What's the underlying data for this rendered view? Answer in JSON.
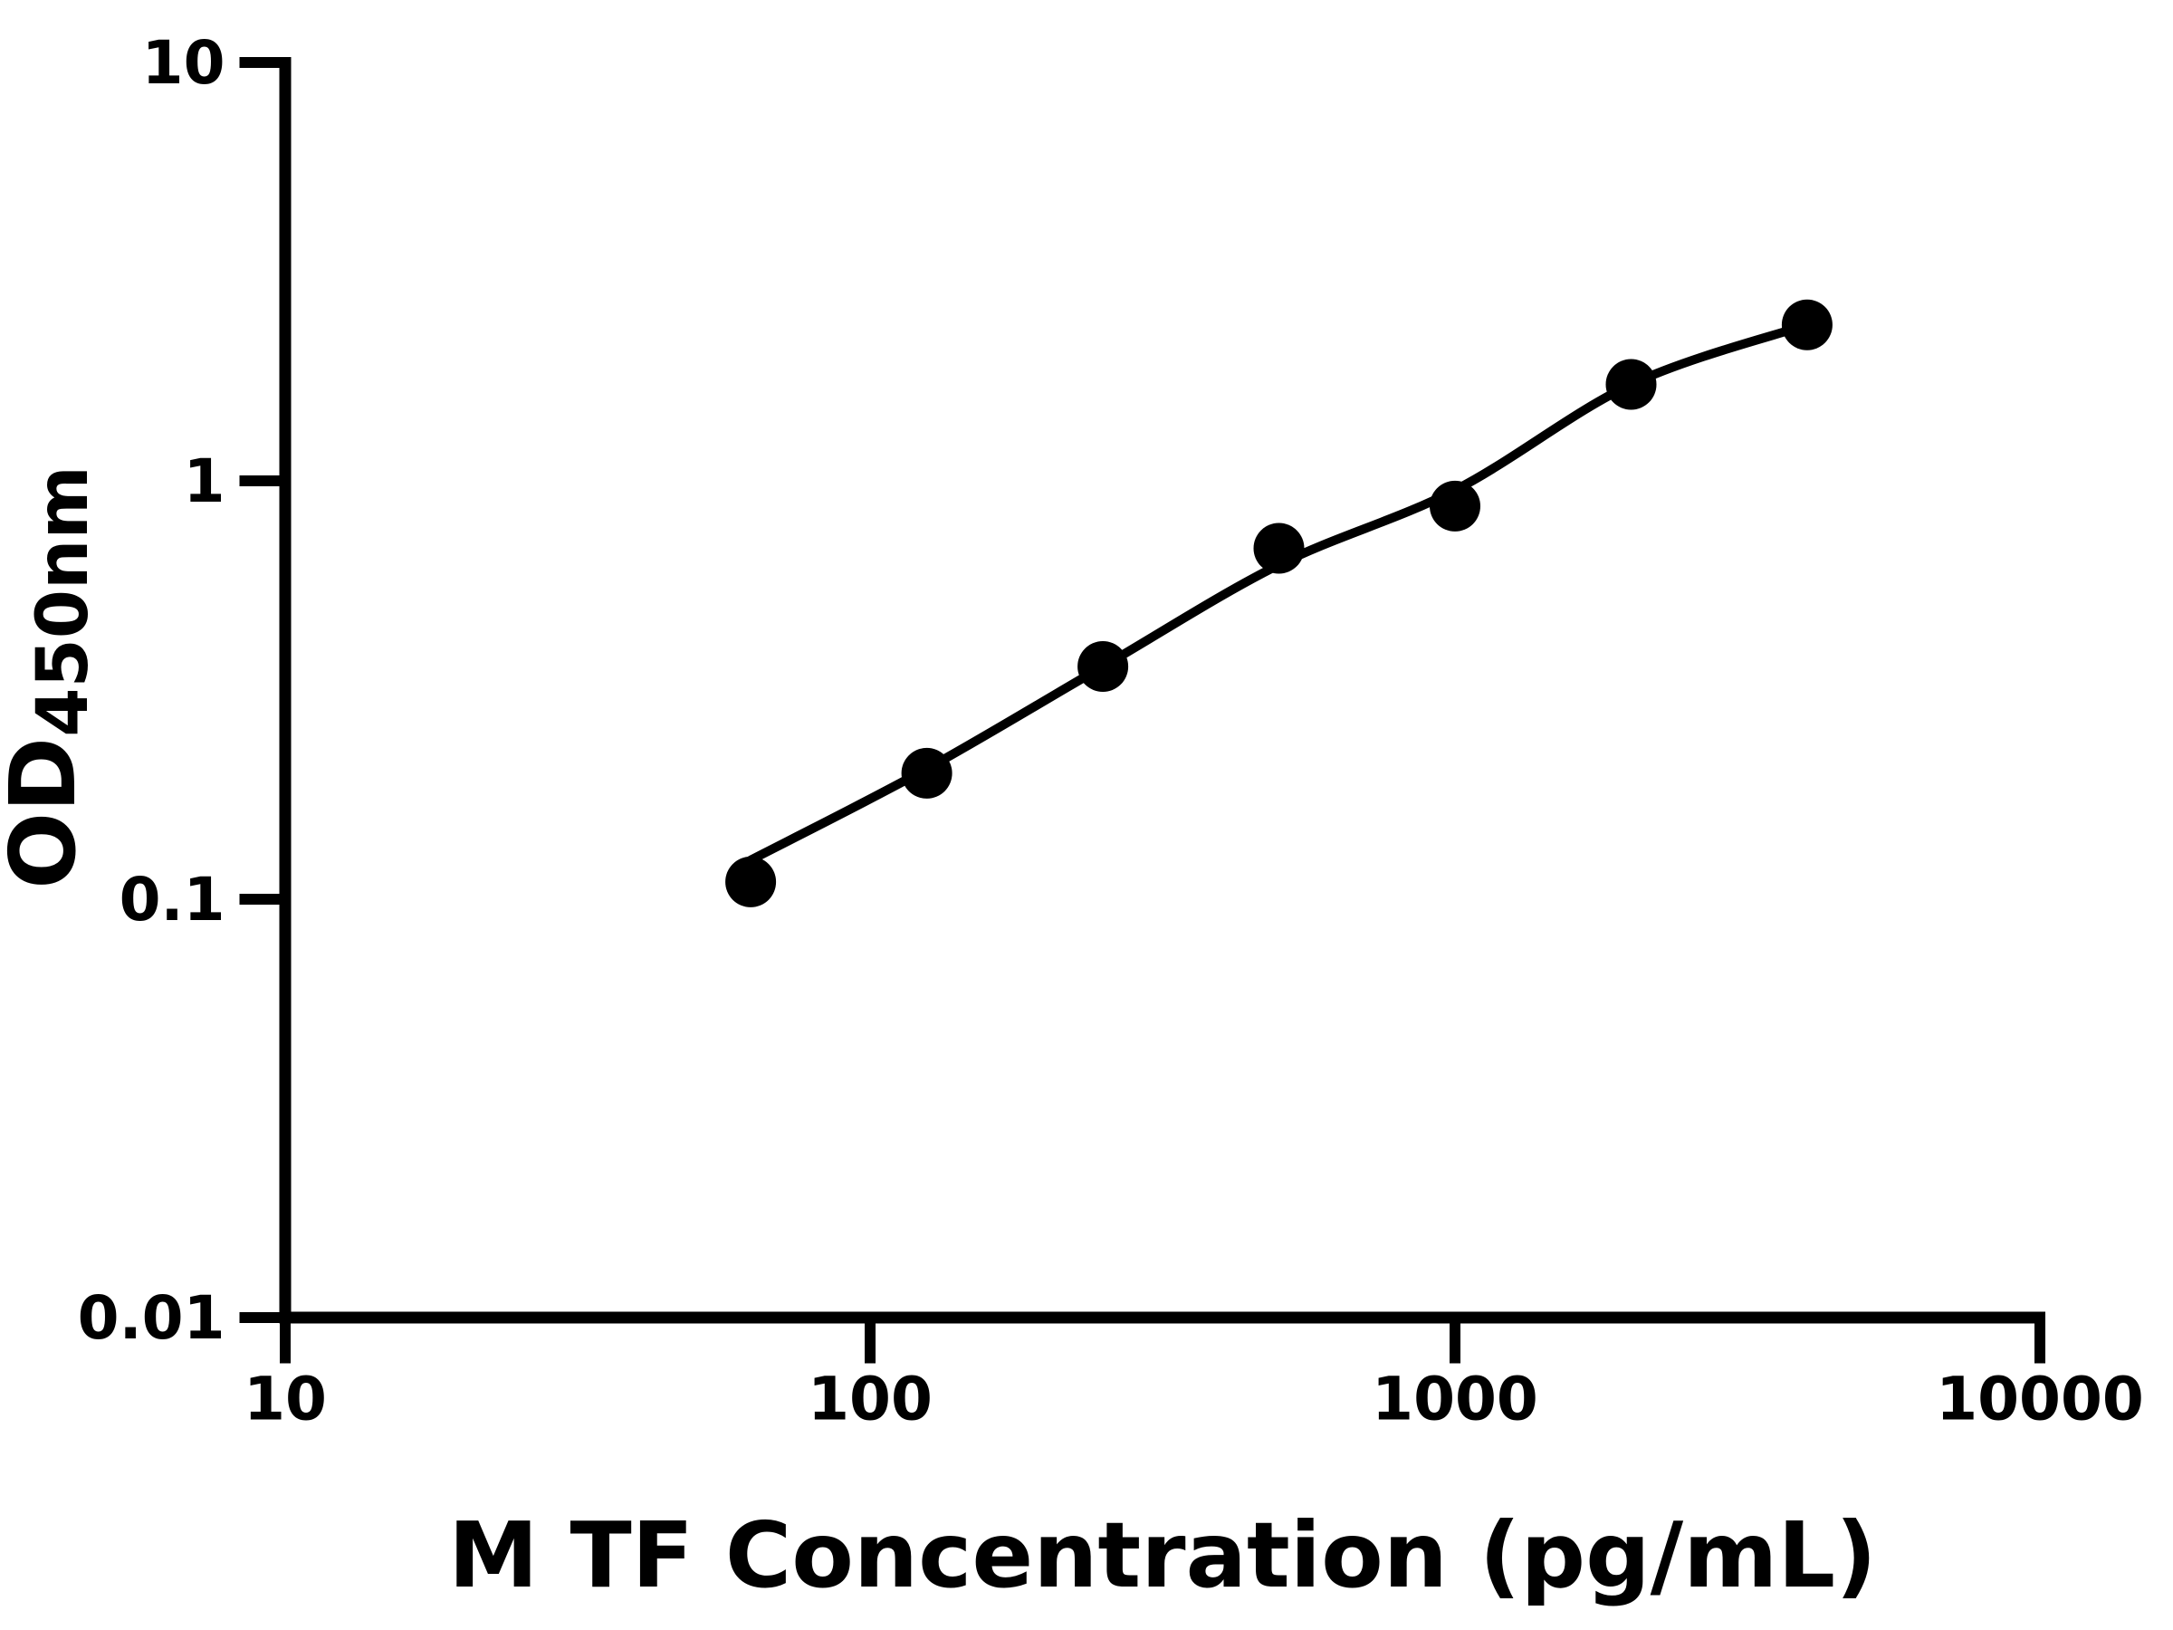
{
  "chart_data": {
    "type": "scatter",
    "title": "",
    "xlabel": "M TF Concentration (pg/mL)",
    "ylabel": "OD450nm",
    "ylabel_main": "OD",
    "ylabel_sub": "450nm",
    "x_scale": "log10",
    "y_scale": "log10",
    "xlim": [
      10,
      10000
    ],
    "ylim": [
      0.01,
      10
    ],
    "x_ticks": [
      {
        "value": 10,
        "label": "10"
      },
      {
        "value": 100,
        "label": "100"
      },
      {
        "value": 1000,
        "label": "1000"
      },
      {
        "value": 10000,
        "label": "10000"
      }
    ],
    "y_ticks": [
      {
        "value": 0.01,
        "label": "0.01"
      },
      {
        "value": 0.1,
        "label": "0.1"
      },
      {
        "value": 1,
        "label": "1"
      },
      {
        "value": 10,
        "label": "10"
      }
    ],
    "grid": false,
    "legend": false,
    "background_color": "#ffffff",
    "axis_color": "#000000",
    "marker_color": "#000000",
    "curve_color": "#000000",
    "series": [
      {
        "marker": "filled-circle",
        "color": "#000000",
        "points": [
          {
            "x": 62.5,
            "y": 0.11
          },
          {
            "x": 125,
            "y": 0.2
          },
          {
            "x": 250,
            "y": 0.36
          },
          {
            "x": 500,
            "y": 0.69
          },
          {
            "x": 1000,
            "y": 0.87
          },
          {
            "x": 2000,
            "y": 1.7
          },
          {
            "x": 4000,
            "y": 2.36
          }
        ]
      }
    ],
    "fit_curve": {
      "color": "#000000",
      "points": [
        {
          "x": 62.5,
          "y": 0.124
        },
        {
          "x": 125,
          "y": 0.205
        },
        {
          "x": 250,
          "y": 0.36
        },
        {
          "x": 500,
          "y": 0.63
        },
        {
          "x": 1000,
          "y": 0.95
        },
        {
          "x": 2000,
          "y": 1.7
        },
        {
          "x": 4000,
          "y": 2.36
        }
      ]
    }
  }
}
